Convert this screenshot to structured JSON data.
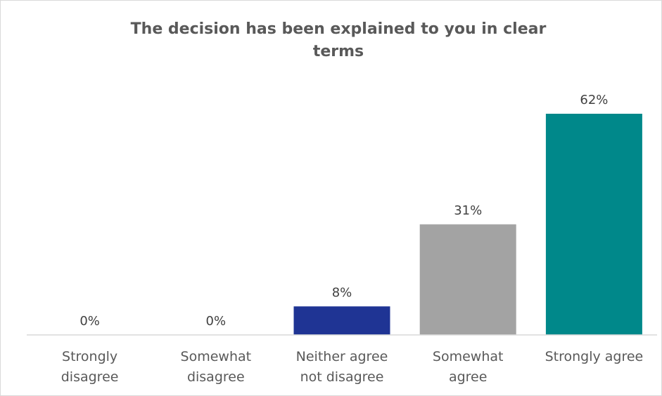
{
  "chart_data": {
    "type": "bar",
    "title_lines": [
      "The decision has been explained to you in clear",
      "terms"
    ],
    "categories": [
      [
        "Strongly",
        "disagree"
      ],
      [
        "Somewhat",
        "disagree"
      ],
      [
        "Neither agree",
        "not disagree"
      ],
      [
        "Somewhat",
        "agree"
      ],
      [
        "Strongly agree"
      ]
    ],
    "values": [
      0,
      0,
      8,
      31,
      62
    ],
    "value_labels": [
      "0%",
      "0%",
      "8%",
      "31%",
      "62%"
    ],
    "colors": [
      "#1f3494",
      "#1f3494",
      "#1f3494",
      "#a3a3a3",
      "#00888a"
    ],
    "ylim": [
      0,
      62
    ],
    "grid": false,
    "legend": "none"
  }
}
